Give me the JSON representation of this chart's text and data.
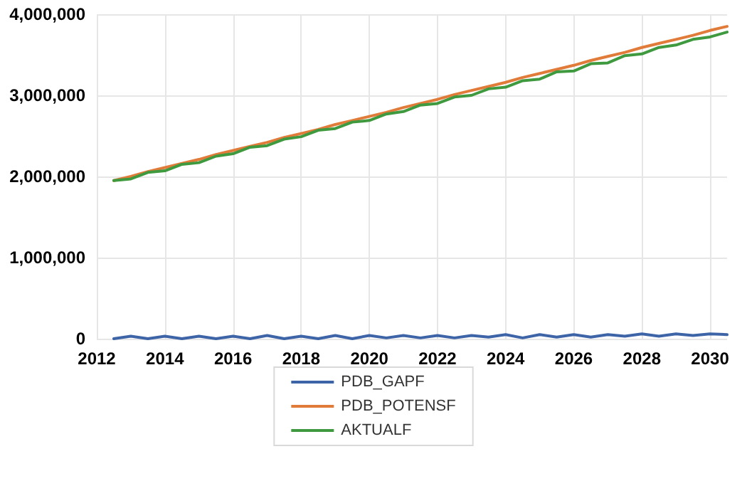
{
  "chart_data": {
    "type": "line",
    "x": [
      2012.5,
      2013,
      2013.5,
      2014,
      2014.5,
      2015,
      2015.5,
      2016,
      2016.5,
      2017,
      2017.5,
      2018,
      2018.5,
      2019,
      2019.5,
      2020,
      2020.5,
      2021,
      2021.5,
      2022,
      2022.5,
      2023,
      2023.5,
      2024,
      2024.5,
      2025,
      2025.5,
      2026,
      2026.5,
      2027,
      2027.5,
      2028,
      2028.5,
      2029,
      2029.5,
      2030,
      2030.5
    ],
    "series": [
      {
        "name": "PDB_GAPF",
        "color": "#3e64a8",
        "values": [
          0,
          30000,
          0,
          30000,
          0,
          30000,
          0,
          30000,
          0,
          40000,
          0,
          30000,
          0,
          40000,
          0,
          40000,
          10000,
          40000,
          10000,
          40000,
          10000,
          40000,
          20000,
          50000,
          10000,
          50000,
          20000,
          50000,
          20000,
          50000,
          30000,
          60000,
          30000,
          60000,
          40000,
          60000,
          50000
        ]
      },
      {
        "name": "PDB_POTENSF",
        "color": "#e07b39",
        "values": [
          1950000,
          2000000,
          2060000,
          2110000,
          2160000,
          2210000,
          2270000,
          2320000,
          2370000,
          2420000,
          2480000,
          2530000,
          2580000,
          2640000,
          2690000,
          2740000,
          2790000,
          2850000,
          2900000,
          2950000,
          3010000,
          3060000,
          3110000,
          3160000,
          3220000,
          3270000,
          3320000,
          3370000,
          3430000,
          3480000,
          3530000,
          3590000,
          3640000,
          3690000,
          3740000,
          3800000,
          3850000
        ]
      },
      {
        "name": "AKTUALF",
        "color": "#3f9a3f",
        "values": [
          1950000,
          1970000,
          2050000,
          2070000,
          2150000,
          2170000,
          2250000,
          2280000,
          2360000,
          2380000,
          2460000,
          2490000,
          2570000,
          2590000,
          2670000,
          2690000,
          2770000,
          2800000,
          2880000,
          2900000,
          2980000,
          3000000,
          3080000,
          3100000,
          3180000,
          3200000,
          3290000,
          3300000,
          3390000,
          3400000,
          3490000,
          3510000,
          3590000,
          3620000,
          3690000,
          3720000,
          3780000
        ]
      }
    ],
    "xlim": [
      2012,
      2030.5
    ],
    "xticks": [
      2012,
      2014,
      2016,
      2018,
      2020,
      2022,
      2024,
      2026,
      2028,
      2030
    ],
    "ylim": [
      0,
      4000000
    ],
    "yticks": [
      0,
      {
        "value": 1000000,
        "label": "1,000,000"
      },
      {
        "value": 2000000,
        "label": "2,000,000"
      },
      {
        "value": 3000000,
        "label": "3,000,000"
      },
      {
        "value": 4000000,
        "label": "4,000,000"
      }
    ],
    "grid": true,
    "legend": "bottom",
    "marker": "none",
    "line_style": "solid"
  }
}
